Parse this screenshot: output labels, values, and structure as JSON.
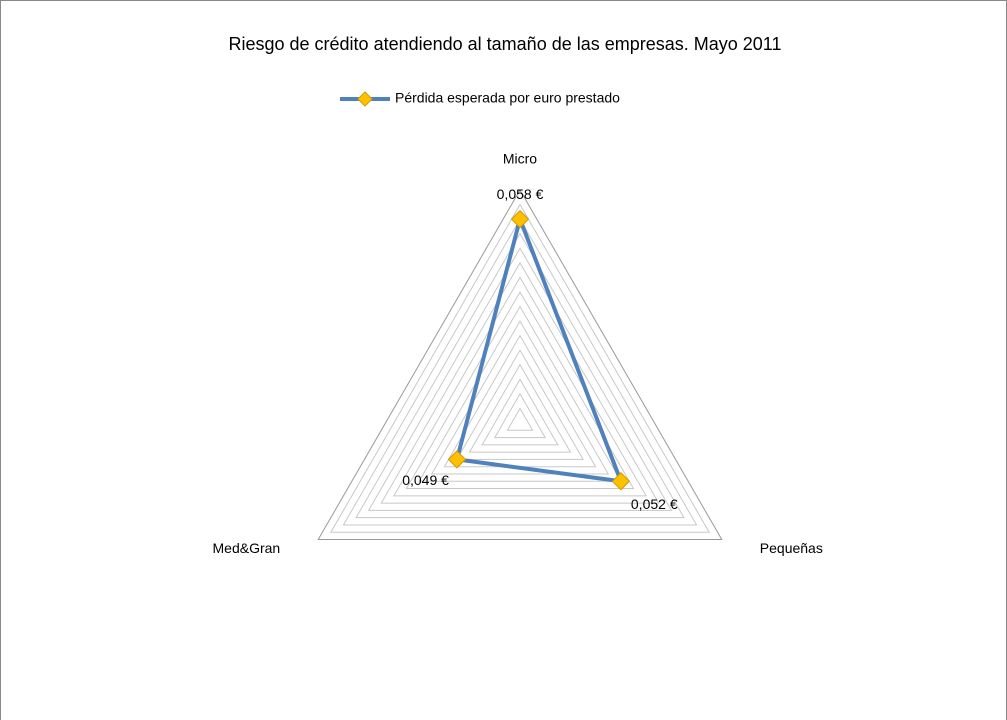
{
  "chart_data": {
    "type": "radar",
    "title": "Riesgo de crédito atendiendo al tamaño de las empresas. Mayo 2011",
    "categories": [
      "Micro",
      "Pequeñas",
      "Med&Gran"
    ],
    "series": [
      {
        "name": "Pérdida esperada por euro prestado",
        "color": "#4f81bd",
        "marker_color": "#ffc000",
        "values": [
          0.058,
          0.052,
          0.049
        ],
        "value_labels": [
          "0,058 €",
          "0,052 €",
          "0,049 €"
        ]
      }
    ],
    "rlim": [
      0.044,
      0.06
    ],
    "rticks": [
      0.044,
      0.045,
      0.046,
      0.047,
      0.048,
      0.049,
      0.05,
      0.051,
      0.052,
      0.053,
      0.054,
      0.055,
      0.056,
      0.057,
      0.058,
      0.059,
      0.06
    ],
    "grid": true,
    "legend": "top"
  }
}
